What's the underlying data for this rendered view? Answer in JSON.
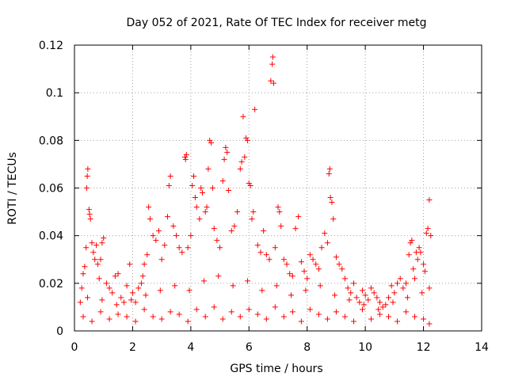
{
  "chart_data": {
    "type": "scatter",
    "title": "Day 052 of 2021, Rate Of TEC Index for receiver metg",
    "xlabel": "GPS time / hours",
    "ylabel": "ROTI / TECUs",
    "xlim": [
      0,
      14
    ],
    "ylim": [
      0,
      0.12
    ],
    "x_ticks": [
      0,
      2,
      4,
      6,
      8,
      10,
      12,
      14
    ],
    "y_ticks": [
      0,
      0.02,
      0.04,
      0.06,
      0.08,
      0.1,
      0.12
    ],
    "y_tick_labels": [
      "0",
      "0.02",
      "0.04",
      "0.06",
      "0.08",
      "0.1",
      "0.12"
    ],
    "grid": true,
    "marker": "+",
    "color": "#ff0000",
    "series": [
      {
        "points": [
          [
            0.2,
            0.012
          ],
          [
            0.25,
            0.018
          ],
          [
            0.3,
            0.024
          ],
          [
            0.35,
            0.027
          ],
          [
            0.4,
            0.035
          ],
          [
            0.42,
            0.06
          ],
          [
            0.44,
            0.065
          ],
          [
            0.46,
            0.068
          ],
          [
            0.5,
            0.051
          ],
          [
            0.52,
            0.049
          ],
          [
            0.55,
            0.047
          ],
          [
            0.6,
            0.037
          ],
          [
            0.65,
            0.033
          ],
          [
            0.7,
            0.03
          ],
          [
            0.75,
            0.036
          ],
          [
            0.8,
            0.028
          ],
          [
            0.85,
            0.022
          ],
          [
            0.9,
            0.03
          ],
          [
            0.95,
            0.037
          ],
          [
            1.0,
            0.039
          ],
          [
            1.1,
            0.02
          ],
          [
            1.2,
            0.018
          ],
          [
            1.3,
            0.016
          ],
          [
            1.4,
            0.023
          ],
          [
            1.5,
            0.024
          ],
          [
            1.6,
            0.014
          ],
          [
            1.7,
            0.012
          ],
          [
            1.8,
            0.019
          ],
          [
            1.9,
            0.028
          ],
          [
            2.0,
            0.016
          ],
          [
            2.1,
            0.012
          ],
          [
            2.2,
            0.018
          ],
          [
            2.3,
            0.02
          ],
          [
            2.35,
            0.023
          ],
          [
            2.4,
            0.028
          ],
          [
            2.5,
            0.032
          ],
          [
            2.55,
            0.052
          ],
          [
            2.6,
            0.047
          ],
          [
            2.7,
            0.04
          ],
          [
            2.8,
            0.038
          ],
          [
            2.9,
            0.042
          ],
          [
            3.0,
            0.03
          ],
          [
            3.1,
            0.036
          ],
          [
            3.2,
            0.048
          ],
          [
            3.25,
            0.061
          ],
          [
            3.3,
            0.065
          ],
          [
            3.4,
            0.044
          ],
          [
            3.5,
            0.04
          ],
          [
            3.6,
            0.035
          ],
          [
            3.7,
            0.033
          ],
          [
            3.8,
            0.073
          ],
          [
            3.82,
            0.072
          ],
          [
            3.85,
            0.074
          ],
          [
            3.9,
            0.035
          ],
          [
            4.0,
            0.04
          ],
          [
            4.05,
            0.061
          ],
          [
            4.1,
            0.065
          ],
          [
            4.15,
            0.056
          ],
          [
            4.2,
            0.052
          ],
          [
            4.3,
            0.047
          ],
          [
            4.35,
            0.06
          ],
          [
            4.4,
            0.058
          ],
          [
            4.5,
            0.05
          ],
          [
            4.55,
            0.052
          ],
          [
            4.6,
            0.068
          ],
          [
            4.65,
            0.08
          ],
          [
            4.7,
            0.079
          ],
          [
            4.75,
            0.06
          ],
          [
            4.8,
            0.043
          ],
          [
            4.9,
            0.038
          ],
          [
            5.0,
            0.035
          ],
          [
            5.1,
            0.063
          ],
          [
            5.15,
            0.072
          ],
          [
            5.2,
            0.077
          ],
          [
            5.25,
            0.075
          ],
          [
            5.3,
            0.059
          ],
          [
            5.4,
            0.042
          ],
          [
            5.5,
            0.044
          ],
          [
            5.6,
            0.05
          ],
          [
            5.7,
            0.068
          ],
          [
            5.75,
            0.071
          ],
          [
            5.8,
            0.09
          ],
          [
            5.85,
            0.073
          ],
          [
            5.9,
            0.081
          ],
          [
            5.95,
            0.08
          ],
          [
            6.0,
            0.062
          ],
          [
            6.05,
            0.061
          ],
          [
            6.1,
            0.047
          ],
          [
            6.15,
            0.05
          ],
          [
            6.2,
            0.093
          ],
          [
            6.3,
            0.036
          ],
          [
            6.4,
            0.033
          ],
          [
            6.5,
            0.042
          ],
          [
            6.6,
            0.032
          ],
          [
            6.7,
            0.03
          ],
          [
            6.75,
            0.105
          ],
          [
            6.8,
            0.112
          ],
          [
            6.82,
            0.115
          ],
          [
            6.85,
            0.104
          ],
          [
            6.9,
            0.035
          ],
          [
            7.0,
            0.052
          ],
          [
            7.05,
            0.05
          ],
          [
            7.1,
            0.044
          ],
          [
            7.2,
            0.03
          ],
          [
            7.3,
            0.028
          ],
          [
            7.4,
            0.024
          ],
          [
            7.5,
            0.023
          ],
          [
            7.6,
            0.043
          ],
          [
            7.7,
            0.048
          ],
          [
            7.8,
            0.029
          ],
          [
            7.9,
            0.025
          ],
          [
            8.0,
            0.022
          ],
          [
            8.1,
            0.032
          ],
          [
            8.2,
            0.03
          ],
          [
            8.3,
            0.028
          ],
          [
            8.4,
            0.026
          ],
          [
            8.5,
            0.035
          ],
          [
            8.6,
            0.041
          ],
          [
            8.7,
            0.037
          ],
          [
            8.75,
            0.066
          ],
          [
            8.78,
            0.068
          ],
          [
            8.8,
            0.056
          ],
          [
            8.85,
            0.054
          ],
          [
            8.9,
            0.047
          ],
          [
            9.0,
            0.031
          ],
          [
            9.1,
            0.028
          ],
          [
            9.2,
            0.026
          ],
          [
            9.3,
            0.022
          ],
          [
            9.4,
            0.018
          ],
          [
            9.5,
            0.016
          ],
          [
            9.6,
            0.02
          ],
          [
            9.7,
            0.014
          ],
          [
            9.8,
            0.012
          ],
          [
            9.9,
            0.017
          ],
          [
            10.0,
            0.015
          ],
          [
            10.1,
            0.013
          ],
          [
            10.2,
            0.018
          ],
          [
            10.3,
            0.016
          ],
          [
            10.4,
            0.014
          ],
          [
            10.5,
            0.012
          ],
          [
            10.6,
            0.01
          ],
          [
            10.7,
            0.011
          ],
          [
            10.8,
            0.014
          ],
          [
            10.9,
            0.019
          ],
          [
            11.0,
            0.016
          ],
          [
            11.1,
            0.02
          ],
          [
            11.2,
            0.022
          ],
          [
            11.3,
            0.018
          ],
          [
            11.4,
            0.02
          ],
          [
            11.5,
            0.032
          ],
          [
            11.55,
            0.037
          ],
          [
            11.6,
            0.038
          ],
          [
            11.65,
            0.026
          ],
          [
            11.7,
            0.022
          ],
          [
            11.75,
            0.033
          ],
          [
            11.8,
            0.03
          ],
          [
            11.85,
            0.035
          ],
          [
            11.9,
            0.033
          ],
          [
            12.0,
            0.028
          ],
          [
            12.05,
            0.025
          ],
          [
            12.1,
            0.041
          ],
          [
            12.15,
            0.043
          ],
          [
            12.2,
            0.055
          ],
          [
            12.25,
            0.04
          ],
          [
            0.3,
            0.006
          ],
          [
            0.6,
            0.004
          ],
          [
            0.9,
            0.008
          ],
          [
            1.2,
            0.005
          ],
          [
            1.5,
            0.007
          ],
          [
            1.8,
            0.006
          ],
          [
            2.1,
            0.004
          ],
          [
            2.4,
            0.009
          ],
          [
            2.7,
            0.006
          ],
          [
            3.0,
            0.005
          ],
          [
            3.3,
            0.008
          ],
          [
            3.6,
            0.007
          ],
          [
            3.9,
            0.004
          ],
          [
            4.2,
            0.009
          ],
          [
            4.5,
            0.006
          ],
          [
            4.8,
            0.01
          ],
          [
            5.1,
            0.005
          ],
          [
            5.4,
            0.008
          ],
          [
            5.7,
            0.006
          ],
          [
            6.0,
            0.009
          ],
          [
            6.3,
            0.007
          ],
          [
            6.6,
            0.005
          ],
          [
            6.9,
            0.01
          ],
          [
            7.2,
            0.006
          ],
          [
            7.5,
            0.008
          ],
          [
            7.8,
            0.004
          ],
          [
            8.1,
            0.009
          ],
          [
            8.4,
            0.007
          ],
          [
            8.7,
            0.005
          ],
          [
            9.0,
            0.008
          ],
          [
            9.3,
            0.006
          ],
          [
            9.6,
            0.004
          ],
          [
            9.9,
            0.009
          ],
          [
            10.2,
            0.005
          ],
          [
            10.5,
            0.007
          ],
          [
            10.8,
            0.006
          ],
          [
            11.1,
            0.004
          ],
          [
            11.4,
            0.008
          ],
          [
            11.7,
            0.006
          ],
          [
            12.0,
            0.005
          ],
          [
            12.2,
            0.003
          ],
          [
            0.45,
            0.014
          ],
          [
            0.95,
            0.013
          ],
          [
            1.45,
            0.011
          ],
          [
            1.95,
            0.013
          ],
          [
            2.45,
            0.015
          ],
          [
            2.95,
            0.017
          ],
          [
            3.45,
            0.019
          ],
          [
            3.95,
            0.017
          ],
          [
            4.45,
            0.021
          ],
          [
            4.95,
            0.023
          ],
          [
            5.45,
            0.019
          ],
          [
            5.95,
            0.021
          ],
          [
            6.45,
            0.017
          ],
          [
            6.95,
            0.019
          ],
          [
            7.45,
            0.015
          ],
          [
            7.95,
            0.017
          ],
          [
            8.45,
            0.019
          ],
          [
            8.95,
            0.015
          ],
          [
            9.45,
            0.013
          ],
          [
            9.95,
            0.011
          ],
          [
            10.45,
            0.009
          ],
          [
            10.95,
            0.012
          ],
          [
            11.45,
            0.014
          ],
          [
            11.95,
            0.016
          ],
          [
            12.2,
            0.018
          ]
        ]
      }
    ]
  }
}
